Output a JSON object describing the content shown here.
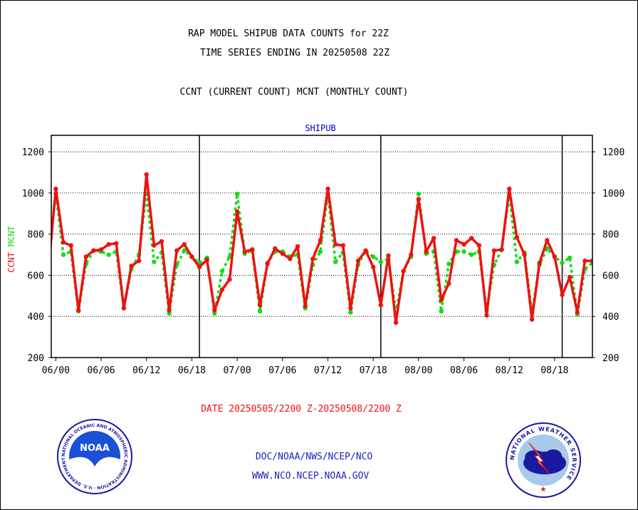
{
  "header": {
    "title_line1": "RAP MODEL SHIPUB DATA COUNTS for 22Z",
    "title_line2": "TIME SERIES ENDING IN 20250508 22Z",
    "subtitle": "CCNT (CURRENT COUNT) MCNT (MONTHLY COUNT)"
  },
  "footer": {
    "date_range": "DATE 20250505/2200 Z-20250508/2200 Z",
    "org_line": "DOC/NOAA/NWS/NCEP/NCO",
    "url": "WWW.NCO.NCEP.NOAA.GOV",
    "noaa_logo_text": "NOAA",
    "noaa_ring_text": "NATIONAL OCEANIC AND ATMOSPHERIC ADMINISTRATION · U.S. DEPARTMENT OF COMMERCE",
    "nws_ring_text": "NATIONAL WEATHER SERVICE"
  },
  "colors": {
    "ccnt": "#ee1111",
    "mcnt": "#11dd11",
    "panel_title": "#0000cc",
    "footer_blue": "#2222bb",
    "date_red": "#ee1111"
  },
  "chart_data": {
    "type": "line",
    "panel_title": "SHIPUB",
    "ylabel_left_ccnt": "CCNT",
    "ylabel_left_mcnt": "MCNT",
    "ylim": [
      200,
      1280
    ],
    "yticks": [
      200,
      400,
      600,
      800,
      1000,
      1200
    ],
    "xlim": [
      -0.3,
      35.5
    ],
    "xticks": [
      {
        "x": 0,
        "label": "06/00"
      },
      {
        "x": 3,
        "label": "06/06"
      },
      {
        "x": 6,
        "label": "06/12"
      },
      {
        "x": 9,
        "label": "06/18"
      },
      {
        "x": 12,
        "label": "07/00"
      },
      {
        "x": 15,
        "label": "07/06"
      },
      {
        "x": 18,
        "label": "07/12"
      },
      {
        "x": 21,
        "label": "07/18"
      },
      {
        "x": 24,
        "label": "08/00"
      },
      {
        "x": 27,
        "label": "08/06"
      },
      {
        "x": 30,
        "label": "08/12"
      },
      {
        "x": 33,
        "label": "08/18"
      }
    ],
    "day_separators": [
      9.5,
      21.5,
      33.5
    ],
    "grid": "horizontal dotted",
    "series": [
      {
        "name": "CCNT",
        "style": "solid",
        "x": [
          -1,
          -0.5,
          0,
          0.5,
          1,
          1.5,
          2,
          2.5,
          3,
          3.5,
          4,
          4.5,
          5,
          5.5,
          6,
          6.5,
          7,
          7.5,
          8,
          8.5,
          9,
          9.5,
          10,
          10.5,
          11,
          11.5,
          12,
          12.5,
          13,
          13.5,
          14,
          14.5,
          15,
          15.5,
          16,
          16.5,
          17,
          17.5,
          18,
          18.5,
          19,
          19.5,
          20,
          20.5,
          21,
          21.5,
          22,
          22.5,
          23,
          23.5,
          24,
          24.5,
          25,
          25.5,
          26,
          26.5,
          27,
          27.5,
          28,
          28.5,
          29,
          29.5,
          30,
          30.5,
          31,
          31.5,
          32,
          32.5,
          33,
          33.5,
          34,
          34.5,
          35,
          35.5
        ],
        "values": [
          470,
          620,
          1020,
          760,
          745,
          430,
          690,
          720,
          725,
          750,
          755,
          440,
          645,
          670,
          1090,
          745,
          765,
          430,
          720,
          750,
          690,
          640,
          675,
          430,
          530,
          580,
          910,
          715,
          725,
          455,
          655,
          730,
          705,
          680,
          740,
          450,
          680,
          770,
          1020,
          750,
          745,
          440,
          670,
          720,
          640,
          455,
          695,
          370,
          620,
          700,
          970,
          715,
          780,
          480,
          560,
          770,
          750,
          780,
          745,
          405,
          720,
          725,
          1020,
          785,
          700,
          385,
          660,
          770,
          690,
          505,
          590,
          420,
          670,
          670
        ]
      },
      {
        "name": "MCNT",
        "style": "dotted",
        "x": [
          -1,
          -0.5,
          0,
          0.5,
          1,
          1.5,
          2,
          2.5,
          3,
          3.5,
          4,
          4.5,
          5,
          5.5,
          6,
          6.5,
          7,
          7.5,
          8,
          8.5,
          9,
          9.5,
          10,
          10.5,
          11,
          11.5,
          12,
          12.5,
          13,
          13.5,
          14,
          14.5,
          15,
          15.5,
          16,
          16.5,
          17,
          17.5,
          18,
          18.5,
          19,
          19.5,
          20,
          20.5,
          21,
          21.5,
          22,
          22.5,
          23,
          23.5,
          24,
          24.5,
          25,
          25.5,
          26,
          26.5,
          27,
          27.5,
          28,
          28.5,
          29,
          29.5,
          30,
          30.5,
          31,
          31.5,
          32,
          32.5,
          33,
          33.5,
          34,
          34.5,
          35,
          35.5
        ],
        "values": [
          630,
          700,
          995,
          700,
          715,
          425,
          655,
          720,
          715,
          700,
          715,
          440,
          630,
          700,
          995,
          665,
          710,
          415,
          650,
          720,
          690,
          660,
          685,
          415,
          620,
          690,
          995,
          705,
          720,
          425,
          660,
          715,
          715,
          690,
          700,
          440,
          650,
          715,
          995,
          665,
          710,
          420,
          650,
          720,
          690,
          665,
          680,
          420,
          620,
          690,
          995,
          705,
          715,
          425,
          655,
          715,
          715,
          700,
          715,
          430,
          650,
          725,
          995,
          665,
          710,
          420,
          650,
          730,
          690,
          660,
          685,
          410,
          630,
          660
        ]
      }
    ]
  }
}
